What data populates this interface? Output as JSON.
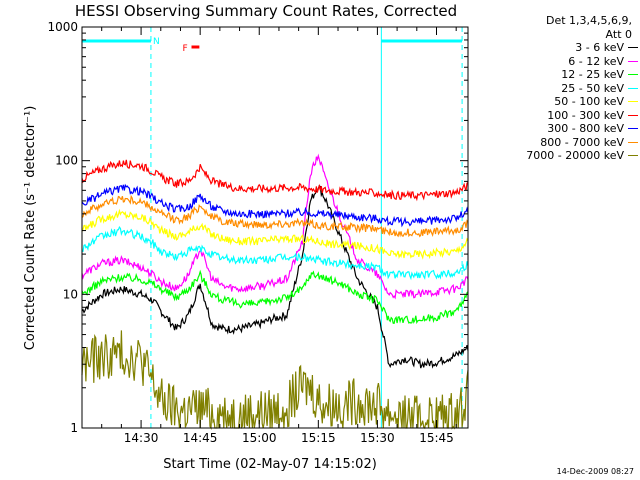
{
  "chart_data": {
    "type": "line",
    "title": "HESSI Observing Summary Count Rates, Corrected",
    "xlabel": "Start Time (02-May-07 14:15:02)",
    "ylabel": "Corrected Count Rate (s⁻¹ detector⁻¹)",
    "y_scale": "log",
    "ylim": [
      1,
      1000
    ],
    "xlim_minutes": [
      0,
      98
    ],
    "x_ticks": [
      {
        "label": "14:30",
        "minutes": 15
      },
      {
        "label": "14:45",
        "minutes": 30
      },
      {
        "label": "15:00",
        "minutes": 45
      },
      {
        "label": "15:15",
        "minutes": 60
      },
      {
        "label": "15:30",
        "minutes": 75
      },
      {
        "label": "15:45",
        "minutes": 90
      }
    ],
    "y_ticks": [
      {
        "label": "1",
        "value": 1
      },
      {
        "label": "10",
        "value": 10
      },
      {
        "label": "100",
        "value": 100
      },
      {
        "label": "1000",
        "value": 1000
      }
    ],
    "legend_title": [
      "Det 1,3,4,5,6,9,",
      "Att 0"
    ],
    "legend_position": "right",
    "x": [
      0,
      5,
      10,
      15,
      18,
      20,
      24,
      27,
      30,
      33,
      36,
      40,
      45,
      48,
      52,
      56,
      58,
      60,
      62,
      66,
      70,
      75,
      78,
      82,
      86,
      90,
      95,
      98
    ],
    "series": [
      {
        "name": "3 - 6 keV",
        "color": "#000000",
        "values": [
          7.5,
          10,
          11,
          10,
          9,
          7.5,
          5.5,
          7,
          12,
          6,
          5.5,
          5.5,
          6,
          6.5,
          7,
          20,
          50,
          65,
          50,
          25,
          13,
          8,
          3,
          3.3,
          3,
          3.1,
          3.5,
          4
        ]
      },
      {
        "name": "6 - 12 keV",
        "color": "#ff00ff",
        "values": [
          14,
          17,
          18,
          16,
          14,
          12.5,
          11,
          14,
          22,
          13,
          11.5,
          11,
          11.5,
          12,
          13,
          25,
          80,
          110,
          70,
          35,
          18,
          14,
          10,
          10,
          10,
          10.5,
          11,
          13
        ]
      },
      {
        "name": "12 - 25 keV",
        "color": "#00ff00",
        "values": [
          10,
          12.5,
          13.5,
          13,
          12,
          11,
          9.5,
          11,
          14,
          10,
          9,
          8.5,
          8.5,
          9,
          9.5,
          11,
          14,
          14,
          13,
          12,
          10,
          9,
          6.5,
          6.5,
          6.5,
          6.8,
          7.5,
          10
        ]
      },
      {
        "name": "25 - 50 keV",
        "color": "#00ffff",
        "values": [
          22,
          27,
          30,
          27,
          24,
          21,
          19,
          21,
          22,
          20,
          18.5,
          18,
          18,
          18.5,
          19,
          19,
          18.5,
          18,
          17.5,
          17,
          16.5,
          16,
          14,
          14,
          14,
          14.2,
          14.5,
          17
        ]
      },
      {
        "name": "50 - 100 keV",
        "color": "#ffff00",
        "values": [
          30,
          37,
          40,
          38,
          34,
          30,
          27,
          29,
          33,
          28,
          26,
          25,
          25,
          25.5,
          26,
          26,
          25.5,
          25,
          24,
          23.5,
          23,
          22,
          20,
          20,
          20,
          20.5,
          21,
          25
        ]
      },
      {
        "name": "100 - 300 keV",
        "color": "#ff0000",
        "values": [
          73,
          87,
          96,
          92,
          83,
          75,
          67,
          70,
          88,
          70,
          65,
          62,
          62,
          62,
          63,
          63,
          62,
          61,
          60,
          59,
          58,
          57,
          55,
          55,
          55,
          56,
          58,
          65
        ]
      },
      {
        "name": "300 - 800 keV",
        "color": "#0000ff",
        "values": [
          47,
          56,
          62,
          59,
          53,
          48,
          43,
          45,
          55,
          45,
          42,
          40,
          40,
          40,
          40.5,
          41,
          41,
          40,
          40,
          39,
          38,
          37,
          35,
          35,
          35,
          36,
          37,
          42
        ]
      },
      {
        "name": "800 - 7000 keV",
        "color": "#ff8c00",
        "values": [
          40,
          47,
          52,
          49,
          44,
          40,
          36,
          38,
          46,
          38,
          35,
          33.5,
          33.5,
          33.5,
          34,
          34,
          33.5,
          33,
          32.5,
          32,
          31.5,
          31,
          29,
          29,
          29,
          29.5,
          30,
          34
        ]
      },
      {
        "name": "7000 - 20000 keV",
        "color": "#808000",
        "values": [
          3,
          3.4,
          3.6,
          3.3,
          2.2,
          1.6,
          1.35,
          1.35,
          1.4,
          1.3,
          1.25,
          1.25,
          1.3,
          1.3,
          1.5,
          2,
          2,
          1.6,
          1.5,
          1.5,
          1.6,
          1.5,
          1.3,
          1.2,
          1.2,
          1.2,
          1.25,
          1.8
        ]
      }
    ],
    "annotations": [
      {
        "text": "N",
        "color": "#00ffff",
        "minutes": 17
      },
      {
        "text": "F",
        "color": "#ff0000",
        "minutes": 24.5
      }
    ],
    "night_intervals_minutes": [
      [
        0,
        17.5
      ],
      [
        76,
        96.5
      ]
    ],
    "flare_interval_minutes": [
      27.8,
      29.8
    ]
  },
  "footer_timestamp": "14-Dec-2009 08:27"
}
